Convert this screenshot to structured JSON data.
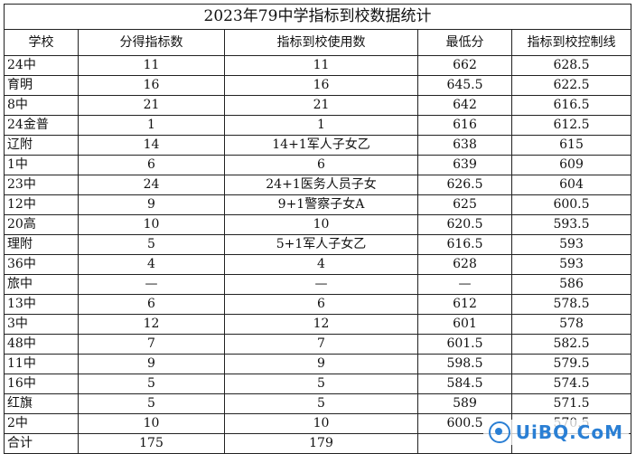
{
  "title": "2023年79中学指标到校数据统计",
  "headers": [
    "学校",
    "分得指标数",
    "指标到校使用数",
    "最低分",
    "指标到校控制线"
  ],
  "rows": [
    [
      "24中",
      "11",
      "11",
      "662",
      "628.5"
    ],
    [
      "育明",
      "16",
      "16",
      "645.5",
      "622.5"
    ],
    [
      "8中",
      "21",
      "21",
      "642",
      "616.5"
    ],
    [
      "24金普",
      "1",
      "1",
      "616",
      "612.5"
    ],
    [
      "辽附",
      "14",
      "14+1军人子女乙",
      "638",
      "615"
    ],
    [
      "1中",
      "6",
      "6",
      "639",
      "609"
    ],
    [
      "23中",
      "24",
      "24+1医务人员子女",
      "626.5",
      "604"
    ],
    [
      "12中",
      "9",
      "9+1警察子女A",
      "625",
      "600.5"
    ],
    [
      "20高",
      "10",
      "10",
      "620.5",
      "593.5"
    ],
    [
      "理附",
      "5",
      "5+1军人子女乙",
      "616.5",
      "593"
    ],
    [
      "36中",
      "4",
      "4",
      "628",
      "593"
    ],
    [
      "旅中",
      "—",
      "—",
      "—",
      "586"
    ],
    [
      "13中",
      "6",
      "6",
      "612",
      "578.5"
    ],
    [
      "3中",
      "12",
      "12",
      "601",
      "578"
    ],
    [
      "48中",
      "7",
      "7",
      "601.5",
      "582.5"
    ],
    [
      "11中",
      "9",
      "9",
      "598.5",
      "579.5"
    ],
    [
      "16中",
      "5",
      "5",
      "584.5",
      "574.5"
    ],
    [
      "红旗",
      "5",
      "5",
      "589",
      "571.5"
    ],
    [
      "2中",
      "10",
      "10",
      "600.5",
      "570.5"
    ],
    [
      "合计",
      "175",
      "179",
      "",
      ""
    ]
  ],
  "watermark": "UiBQ.CoM"
}
